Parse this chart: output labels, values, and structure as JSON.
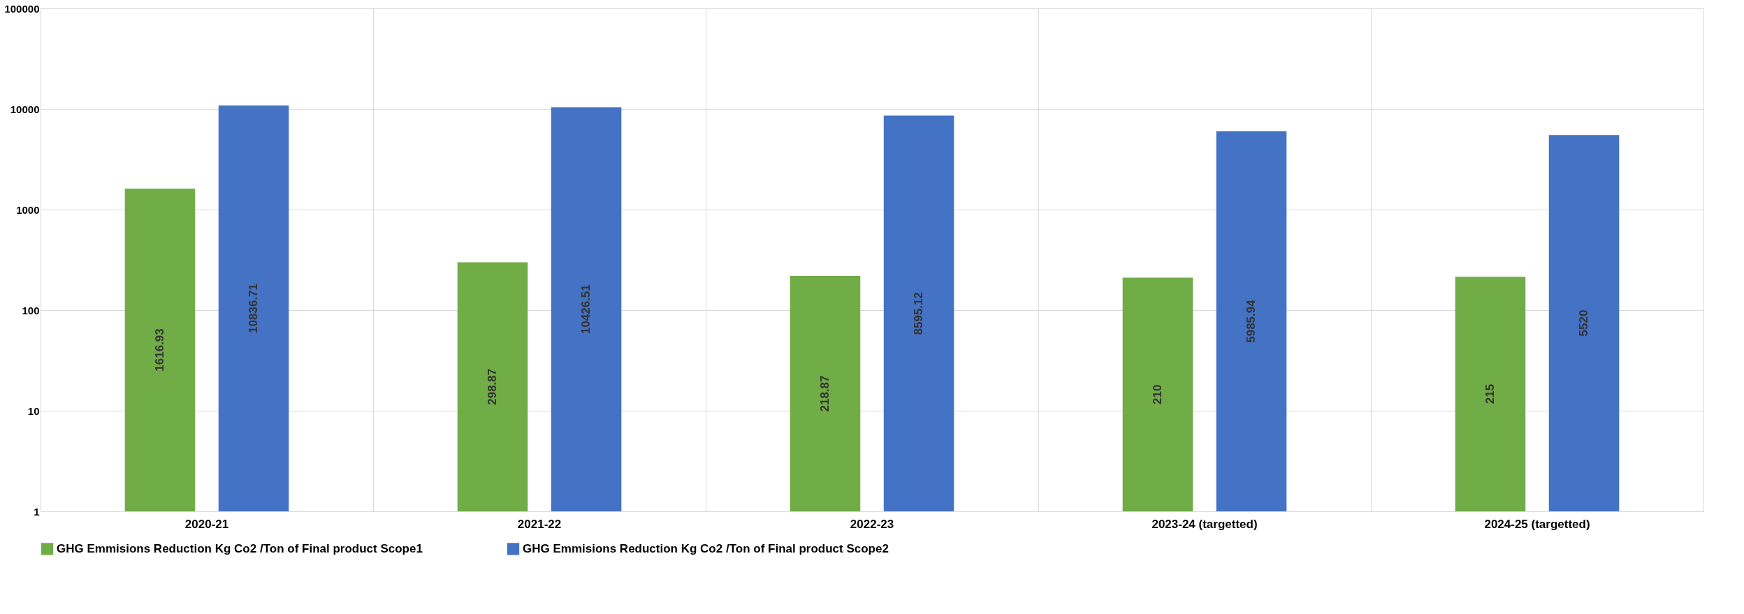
{
  "chart_data": {
    "type": "bar",
    "categories": [
      "2020-21",
      "2021-22",
      "2022-23",
      "2023-24 (targetted)",
      "2024-25 (targetted)"
    ],
    "series": [
      {
        "name": "GHG Emmisions Reduction Kg Co2 /Ton of Final product Scope1",
        "color": "#70ad47",
        "values": [
          1616.93,
          298.87,
          218.87,
          210,
          215
        ]
      },
      {
        "name": "GHG Emmisions Reduction Kg Co2 /Ton of Final product Scope2",
        "color": "#4472c4",
        "values": [
          10836.71,
          10426.51,
          8595.12,
          5985.94,
          5520
        ]
      }
    ],
    "log": "y",
    "ylim": [
      1,
      100000
    ],
    "yticks": [
      1,
      10,
      100,
      1000,
      10000,
      100000
    ],
    "grid": true,
    "legend": "bottom",
    "data_labels": true
  }
}
